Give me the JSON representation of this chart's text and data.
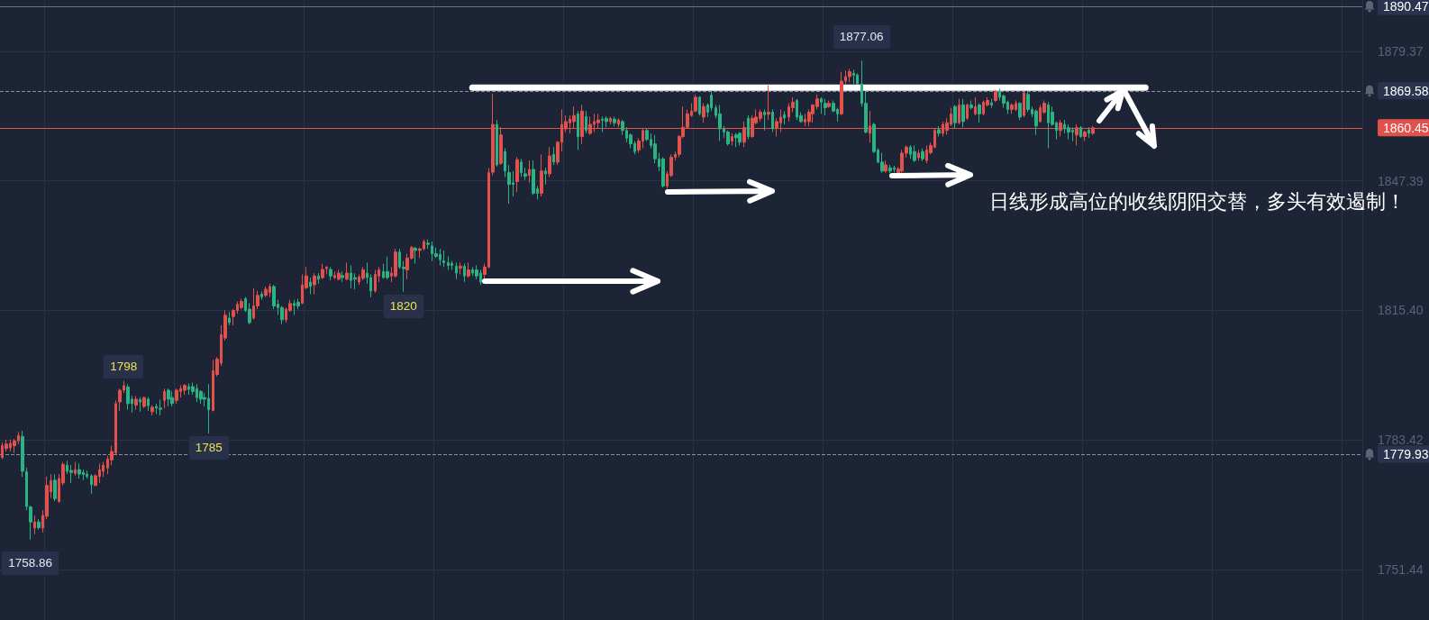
{
  "chart_data": {
    "type": "candlestick",
    "categories": [
      null,
      null,
      null,
      null,
      null,
      null,
      null,
      null,
      null,
      null,
      null,
      null,
      null,
      null,
      null,
      null,
      null,
      null,
      null,
      null,
      null,
      null,
      null,
      null,
      null,
      null,
      null,
      null,
      null,
      null,
      null,
      null,
      null,
      null,
      null,
      null,
      null,
      null,
      null,
      null,
      null,
      null,
      null,
      null,
      null,
      null,
      null,
      null,
      null,
      null,
      null,
      null,
      null,
      null,
      null,
      null,
      null,
      null,
      null,
      null,
      null,
      null,
      null,
      null,
      null,
      null,
      null,
      null,
      null,
      null,
      null,
      null,
      null,
      null,
      null,
      null,
      null,
      null,
      null,
      null,
      null,
      null,
      null,
      null,
      null,
      null,
      null,
      null,
      null,
      null,
      null,
      null,
      null,
      null,
      null,
      null,
      null,
      null,
      null,
      null,
      null,
      null,
      null,
      null,
      null,
      null,
      null,
      null,
      null,
      null,
      null,
      null,
      null,
      null,
      null,
      null,
      null,
      null,
      null,
      null,
      null,
      null,
      null,
      null,
      null,
      null,
      null,
      null,
      null,
      null,
      null,
      null,
      null,
      null,
      null,
      null,
      null,
      null,
      null,
      null,
      null,
      null,
      null,
      null,
      null,
      null,
      null,
      null,
      null,
      null,
      null,
      null,
      null,
      null,
      null,
      null,
      null,
      null,
      null,
      null,
      null,
      null,
      null,
      null,
      null,
      null,
      null,
      null,
      null,
      null,
      null,
      null,
      null,
      null,
      null,
      null,
      null,
      null,
      null,
      null,
      null,
      null,
      null,
      null,
      null,
      null,
      null,
      null,
      null,
      null,
      null,
      null,
      null,
      null,
      null,
      null,
      null,
      null,
      null,
      null,
      null,
      null,
      null,
      null,
      null,
      null,
      null,
      null,
      null,
      null,
      null,
      null,
      null,
      null,
      null,
      null,
      null,
      null,
      null,
      null,
      null,
      null,
      null,
      null,
      null,
      null,
      null,
      null,
      null,
      null,
      null,
      null,
      null,
      null,
      null,
      null,
      null,
      null,
      null,
      null,
      null,
      null,
      null,
      null,
      null,
      null,
      null,
      null,
      null,
      null,
      null,
      null,
      null,
      null,
      null,
      null,
      null,
      null,
      null,
      null,
      null,
      null,
      null,
      null,
      null,
      null,
      null,
      null,
      null,
      null,
      null,
      null,
      null,
      null,
      null,
      null,
      null,
      null,
      null,
      null,
      null,
      null,
      null,
      null,
      null,
      null,
      null,
      null,
      null,
      null,
      null,
      null,
      null,
      null,
      null,
      null,
      null,
      null,
      null,
      null,
      null,
      null,
      null,
      null,
      null,
      null,
      null,
      null,
      null,
      null,
      null,
      null,
      null,
      null,
      null,
      null,
      null,
      null,
      null,
      null,
      null,
      null,
      null,
      null,
      null,
      null,
      null,
      null,
      null,
      null,
      null,
      null,
      null,
      null,
      null,
      null
    ],
    "ohlc": [
      [
        1779.1,
        1782.8,
        1778.7,
        1782.0
      ],
      [
        1781.3,
        1783.5,
        1780.6,
        1782.4
      ],
      [
        1781.5,
        1783.5,
        1780.6,
        1782.6
      ],
      [
        1782.0,
        1783.7,
        1780.2,
        1783.2
      ],
      [
        1783.2,
        1785.4,
        1782.4,
        1784.5
      ],
      [
        1784.3,
        1785.7,
        1774.3,
        1775.7
      ],
      [
        1775.6,
        1776.6,
        1766.1,
        1767.0
      ],
      [
        1766.9,
        1767.2,
        1758.86,
        1763.2
      ],
      [
        1761.7,
        1764.8,
        1760.2,
        1763.2
      ],
      [
        1763.2,
        1763.9,
        1761.3,
        1761.8
      ],
      [
        1761.7,
        1766.1,
        1760.6,
        1764.8
      ],
      [
        1764.6,
        1774.4,
        1763.9,
        1772.2
      ],
      [
        1770.6,
        1775.0,
        1769.1,
        1773.4
      ],
      [
        1773.5,
        1775.0,
        1768.3,
        1768.9
      ],
      [
        1768.2,
        1775.0,
        1768.0,
        1773.9
      ],
      [
        1772.8,
        1778.0,
        1772.2,
        1777.4
      ],
      [
        1777.2,
        1778.3,
        1775.0,
        1775.7
      ],
      [
        1775.9,
        1777.2,
        1772.8,
        1775.4
      ],
      [
        1775.2,
        1778.0,
        1774.6,
        1776.1
      ],
      [
        1776.1,
        1777.6,
        1773.9,
        1775.0
      ],
      [
        1775.4,
        1776.1,
        1773.5,
        1774.9
      ],
      [
        1775.0,
        1775.9,
        1773.9,
        1774.4
      ],
      [
        1774.6,
        1775.0,
        1770.2,
        1772.4
      ],
      [
        1772.2,
        1775.0,
        1772.0,
        1774.6
      ],
      [
        1774.4,
        1777.6,
        1772.8,
        1776.1
      ],
      [
        1775.7,
        1778.0,
        1774.3,
        1777.2
      ],
      [
        1776.5,
        1779.5,
        1775.0,
        1778.7
      ],
      [
        1778.5,
        1782.0,
        1777.2,
        1780.6
      ],
      [
        1780.2,
        1793.2,
        1779.8,
        1792.4
      ],
      [
        1792.8,
        1796.1,
        1790.6,
        1795.7
      ],
      [
        1795.7,
        1798,
        1795.0,
        1796.8
      ],
      [
        1796.5,
        1797.2,
        1790.9,
        1792.4
      ],
      [
        1793.5,
        1794.3,
        1790.2,
        1792.4
      ],
      [
        1792.0,
        1794.3,
        1790.9,
        1793.5
      ],
      [
        1793.4,
        1794.0,
        1790.4,
        1792.8
      ],
      [
        1791.7,
        1794.1,
        1791.3,
        1793.9
      ],
      [
        1793.5,
        1794.0,
        1790.6,
        1791.9
      ],
      [
        1790.4,
        1792.0,
        1789.5,
        1791.5
      ],
      [
        1791.7,
        1792.4,
        1789.8,
        1791.3
      ],
      [
        1791.3,
        1793.4,
        1789.5,
        1791.0
      ],
      [
        1793.2,
        1796.1,
        1791.3,
        1795.4
      ],
      [
        1795.7,
        1796.1,
        1791.7,
        1793.5
      ],
      [
        1793.9,
        1795.4,
        1791.7,
        1792.4
      ],
      [
        1793.2,
        1796.1,
        1792.4,
        1795.7
      ],
      [
        1795.4,
        1796.9,
        1793.9,
        1796.1
      ],
      [
        1795.7,
        1797.2,
        1794.6,
        1796.9
      ],
      [
        1796.6,
        1797.4,
        1794.6,
        1795.9
      ],
      [
        1796.6,
        1797.6,
        1794.6,
        1795.4
      ],
      [
        1796.1,
        1797.2,
        1792.8,
        1793.9
      ],
      [
        1795.4,
        1795.7,
        1792.4,
        1793.5
      ],
      [
        1793.9,
        1795.0,
        1791.7,
        1793.5
      ],
      [
        1793.7,
        1797.2,
        1785,
        1790.9
      ],
      [
        1790.7,
        1803.2,
        1790.5,
        1800.5
      ],
      [
        1799.6,
        1803.9,
        1799.1,
        1803.4
      ],
      [
        1802.4,
        1811.7,
        1801.7,
        1809.4
      ],
      [
        1808.6,
        1815.4,
        1808.0,
        1814.2
      ],
      [
        1813.5,
        1815.0,
        1811.7,
        1812.4
      ],
      [
        1813.9,
        1815.7,
        1811.7,
        1815.4
      ],
      [
        1815.4,
        1817.6,
        1814.6,
        1816.9
      ],
      [
        1816.1,
        1818.3,
        1815.7,
        1817.6
      ],
      [
        1818.3,
        1818.7,
        1815.0,
        1815.4
      ],
      [
        1815.7,
        1817.2,
        1812.0,
        1812.4
      ],
      [
        1813.5,
        1820.9,
        1813.1,
        1816.5
      ],
      [
        1816.5,
        1820.2,
        1815.7,
        1819.1
      ],
      [
        1819.4,
        1820.1,
        1818.0,
        1818.7
      ],
      [
        1819.1,
        1821.3,
        1818.7,
        1820.6
      ],
      [
        1819.8,
        1822.0,
        1818.7,
        1821.3
      ],
      [
        1821.3,
        1821.7,
        1815.7,
        1816.5
      ],
      [
        1816.9,
        1818.0,
        1814.3,
        1816.1
      ],
      [
        1816.1,
        1816.5,
        1812.0,
        1813.1
      ],
      [
        1813.1,
        1816.1,
        1812.4,
        1815.7
      ],
      [
        1815.4,
        1818.0,
        1815.0,
        1817.1
      ],
      [
        1817.1,
        1818.0,
        1814.3,
        1816.6
      ],
      [
        1817.4,
        1818.3,
        1815.7,
        1816.5
      ],
      [
        1817.2,
        1824.3,
        1816.9,
        1821.7
      ],
      [
        1821.0,
        1826.1,
        1820.6,
        1823.9
      ],
      [
        1822.4,
        1823.5,
        1819.4,
        1821.3
      ],
      [
        1821.7,
        1824.6,
        1819.4,
        1823.9
      ],
      [
        1823.9,
        1824.6,
        1822.0,
        1823.1
      ],
      [
        1823.5,
        1826.9,
        1823.1,
        1825.5
      ],
      [
        1825.7,
        1826.3,
        1824.3,
        1826.1
      ],
      [
        1825.5,
        1826.1,
        1822.8,
        1823.9
      ],
      [
        1823.5,
        1825.0,
        1823.1,
        1824.0
      ],
      [
        1823.1,
        1825.4,
        1822.8,
        1824.6
      ],
      [
        1824.0,
        1825.0,
        1822.4,
        1823.5
      ],
      [
        1823.1,
        1827.2,
        1822.8,
        1824.6
      ],
      [
        1824.6,
        1826.5,
        1820.9,
        1822.8
      ],
      [
        1823.5,
        1824.6,
        1820.6,
        1823.1
      ],
      [
        1822.4,
        1824.3,
        1821.7,
        1823.7
      ],
      [
        1823.3,
        1826.1,
        1822.8,
        1825.4
      ],
      [
        1824.6,
        1827.2,
        1822.0,
        1823.5
      ],
      [
        1823.5,
        1824.3,
        1818.7,
        1820.2
      ],
      [
        1820.2,
        1825.4,
        1819.8,
        1824.3
      ],
      [
        1823.9,
        1826.1,
        1822.4,
        1825.4
      ],
      [
        1825.0,
        1826.9,
        1823.2,
        1823.5
      ],
      [
        1825.0,
        1828.7,
        1823.1,
        1823.5
      ],
      [
        1823.9,
        1826.1,
        1822.4,
        1824.6
      ],
      [
        1823.9,
        1830.6,
        1823.5,
        1829.8
      ],
      [
        1829.8,
        1830.6,
        1825.7,
        1826.1
      ],
      [
        1826.1,
        1827.6,
        1820,
        1825.7
      ],
      [
        1825.4,
        1829.4,
        1823.1,
        1828.3
      ],
      [
        1828.3,
        1831.3,
        1828.0,
        1830.9
      ],
      [
        1830.7,
        1831.1,
        1826.9,
        1830.2
      ],
      [
        1830.2,
        1830.9,
        1828.3,
        1830.6
      ],
      [
        1830.6,
        1832.9,
        1830.2,
        1832.4
      ],
      [
        1832.0,
        1832.9,
        1830.6,
        1831.7
      ],
      [
        1831.3,
        1832.4,
        1827.6,
        1829.4
      ],
      [
        1829.4,
        1830.9,
        1828.3,
        1828.7
      ],
      [
        1829.2,
        1830.6,
        1826.5,
        1827.9
      ],
      [
        1827.6,
        1830.2,
        1826.1,
        1827.2
      ],
      [
        1827.2,
        1828.7,
        1825.4,
        1826.5
      ],
      [
        1827.0,
        1827.6,
        1825.4,
        1826.5
      ],
      [
        1826.3,
        1827.2,
        1823.1,
        1824.6
      ],
      [
        1825.8,
        1827.2,
        1824.3,
        1826.3
      ],
      [
        1826.3,
        1826.9,
        1822.4,
        1823.9
      ],
      [
        1823.9,
        1827.2,
        1823.5,
        1825.4
      ],
      [
        1825.4,
        1826.1,
        1823.9,
        1824.6
      ],
      [
        1825.4,
        1826.5,
        1823.1,
        1823.9
      ],
      [
        1824.6,
        1825.4,
        1821.7,
        1822.4
      ],
      [
        1824.3,
        1826.9,
        1822.8,
        1826.1
      ],
      [
        1826.1,
        1850.5,
        1825.8,
        1849.4
      ],
      [
        1849.5,
        1868.8,
        1848.7,
        1861.3
      ],
      [
        1861.3,
        1862.4,
        1850.9,
        1851.3
      ],
      [
        1851.7,
        1860.6,
        1851.3,
        1858.7
      ],
      [
        1854.6,
        1855.4,
        1848.3,
        1849.8
      ],
      [
        1849.4,
        1851.3,
        1841.7,
        1846.5
      ],
      [
        1846.9,
        1849.8,
        1843.5,
        1846.5
      ],
      [
        1847.2,
        1853.2,
        1844.6,
        1852.6
      ],
      [
        1852.0,
        1852.8,
        1848.3,
        1849.4
      ],
      [
        1849.1,
        1850.6,
        1847.6,
        1848.5
      ],
      [
        1848.7,
        1852.4,
        1846.9,
        1850.2
      ],
      [
        1850.2,
        1852.4,
        1843.9,
        1844.3
      ],
      [
        1845.4,
        1846.1,
        1842.8,
        1844.3
      ],
      [
        1844.3,
        1853.9,
        1843.5,
        1849.8
      ],
      [
        1849.8,
        1850.6,
        1846.5,
        1849.1
      ],
      [
        1849.1,
        1855.7,
        1848.3,
        1853.5
      ],
      [
        1853.9,
        1855.7,
        1851.3,
        1852.0
      ],
      [
        1852.0,
        1857.2,
        1851.3,
        1856.9
      ],
      [
        1856.9,
        1865.0,
        1854.6,
        1861.3
      ],
      [
        1860.2,
        1863.5,
        1859.4,
        1862.0
      ],
      [
        1861.7,
        1863.5,
        1859.1,
        1862.6
      ],
      [
        1862.0,
        1865.7,
        1860.2,
        1863.5
      ],
      [
        1863.9,
        1864.6,
        1855.0,
        1858.3
      ],
      [
        1858.3,
        1866.1,
        1856.5,
        1864.6
      ],
      [
        1863.2,
        1864.6,
        1859.1,
        1859.8
      ],
      [
        1859.1,
        1863.2,
        1858.7,
        1861.3
      ],
      [
        1861.3,
        1863.9,
        1859.4,
        1862.0
      ],
      [
        1861.7,
        1863.9,
        1860.2,
        1862.4
      ],
      [
        1862.6,
        1863.2,
        1859.4,
        1862.3
      ],
      [
        1862.8,
        1863.3,
        1860.6,
        1862.0
      ],
      [
        1862.0,
        1863.2,
        1861.3,
        1862.8
      ],
      [
        1862.6,
        1863.2,
        1860.9,
        1861.7
      ],
      [
        1861.3,
        1862.8,
        1860.6,
        1862.4
      ],
      [
        1862.0,
        1862.4,
        1858.7,
        1859.8
      ],
      [
        1859.8,
        1860.6,
        1856.9,
        1857.9
      ],
      [
        1858.7,
        1859.1,
        1855.4,
        1856.5
      ],
      [
        1856.6,
        1857.2,
        1853.9,
        1854.6
      ],
      [
        1855.0,
        1857.9,
        1854.3,
        1857.2
      ],
      [
        1857.2,
        1860.2,
        1855.4,
        1859.8
      ],
      [
        1859.8,
        1860.2,
        1857.2,
        1857.6
      ],
      [
        1857.6,
        1859.1,
        1855.4,
        1856.1
      ],
      [
        1856.5,
        1858.7,
        1851.7,
        1852.8
      ],
      [
        1852.8,
        1854.3,
        1849.8,
        1850.9
      ],
      [
        1852.8,
        1853.2,
        1845.7,
        1846.1
      ],
      [
        1846.1,
        1849.8,
        1845.4,
        1849.1
      ],
      [
        1848.7,
        1853.9,
        1848.3,
        1853.2
      ],
      [
        1853.2,
        1854.6,
        1852.4,
        1853.9
      ],
      [
        1853.9,
        1858.7,
        1853.2,
        1858.3
      ],
      [
        1858.3,
        1865.7,
        1857.9,
        1860.6
      ],
      [
        1860.6,
        1865.0,
        1860.2,
        1863.9
      ],
      [
        1863.5,
        1866.5,
        1863.2,
        1864.6
      ],
      [
        1864.6,
        1868.7,
        1864.3,
        1868.0
      ],
      [
        1868.0,
        1868.3,
        1863.5,
        1863.9
      ],
      [
        1863.1,
        1866.5,
        1861.7,
        1865.7
      ],
      [
        1866.1,
        1866.5,
        1863.1,
        1864.3
      ],
      [
        1868.5,
        1869.3,
        1864.6,
        1865.4
      ],
      [
        1865.4,
        1866.1,
        1862.8,
        1863.5
      ],
      [
        1863.9,
        1866.1,
        1857.2,
        1860.2
      ],
      [
        1860.2,
        1860.9,
        1858.0,
        1859.4
      ],
      [
        1859.4,
        1859.8,
        1856.1,
        1856.5
      ],
      [
        1857.2,
        1859.1,
        1856.1,
        1858.3
      ],
      [
        1858.7,
        1859.2,
        1855.7,
        1858.0
      ],
      [
        1859.1,
        1859.4,
        1856.1,
        1856.9
      ],
      [
        1856.9,
        1862.0,
        1855.7,
        1860.5
      ],
      [
        1862.8,
        1863.5,
        1857.6,
        1858.3
      ],
      [
        1858.3,
        1863.5,
        1858.0,
        1862.8
      ],
      [
        1861.7,
        1865.0,
        1861.3,
        1863.1
      ],
      [
        1862.8,
        1865.0,
        1862.0,
        1864.3
      ],
      [
        1864.3,
        1865.0,
        1859.8,
        1863.7
      ],
      [
        1863.8,
        1870.9,
        1862.4,
        1864.3
      ],
      [
        1864.3,
        1865.0,
        1859.4,
        1860.2
      ],
      [
        1860.5,
        1862.8,
        1858.3,
        1862.0
      ],
      [
        1861.7,
        1865.0,
        1859.4,
        1863.1
      ],
      [
        1863.7,
        1864.6,
        1861.3,
        1862.9
      ],
      [
        1863.1,
        1866.5,
        1862.0,
        1865.7
      ],
      [
        1865.4,
        1868.0,
        1864.3,
        1866.8
      ],
      [
        1867.2,
        1867.6,
        1862.4,
        1863.1
      ],
      [
        1863.5,
        1864.3,
        1861.7,
        1862.0
      ],
      [
        1861.9,
        1863.9,
        1860.9,
        1862.6
      ],
      [
        1862.0,
        1865.0,
        1860.9,
        1864.3
      ],
      [
        1863.9,
        1866.3,
        1861.7,
        1866.1
      ],
      [
        1865.7,
        1868.7,
        1865.0,
        1867.6
      ],
      [
        1867.6,
        1868.0,
        1863.9,
        1866.8
      ],
      [
        1866.5,
        1867.6,
        1863.5,
        1865.4
      ],
      [
        1865.7,
        1867.2,
        1865.4,
        1866.5
      ],
      [
        1866.5,
        1867.2,
        1864.3,
        1864.6
      ],
      [
        1865.0,
        1865.4,
        1862.0,
        1863.9
      ],
      [
        1863.9,
        1874.3,
        1863.6,
        1872.0
      ],
      [
        1872.0,
        1874.6,
        1871.3,
        1873.1
      ],
      [
        1873.1,
        1875.0,
        1871.7,
        1874.3
      ],
      [
        1873.9,
        1874.8,
        1871.3,
        1873.4
      ],
      [
        1873.5,
        1873.9,
        1871.1,
        1871.3
      ],
      [
        1871.3,
        1877.06,
        1865.7,
        1866.5
      ],
      [
        1866.5,
        1869.4,
        1859.1,
        1859.4
      ],
      [
        1859.1,
        1864.6,
        1856.8,
        1860.9
      ],
      [
        1861.3,
        1861.7,
        1854.2,
        1854.6
      ],
      [
        1855.0,
        1855.4,
        1851.7,
        1852.0
      ],
      [
        1852.0,
        1854.3,
        1849.4,
        1849.8
      ],
      [
        1849.8,
        1852.4,
        1849.4,
        1851.3
      ],
      [
        1850.6,
        1851.3,
        1849.3,
        1849.8
      ],
      [
        1850.6,
        1851.1,
        1849.4,
        1850.2
      ],
      [
        1849.4,
        1850.8,
        1849.3,
        1850.3
      ],
      [
        1849.8,
        1855.0,
        1849.4,
        1854.2
      ],
      [
        1854.2,
        1856.1,
        1853.1,
        1855.7
      ],
      [
        1855.7,
        1856.2,
        1852.8,
        1853.9
      ],
      [
        1854.6,
        1856.1,
        1852.0,
        1852.4
      ],
      [
        1853.1,
        1855.0,
        1852.4,
        1854.2
      ],
      [
        1854.6,
        1855.4,
        1852.2,
        1852.8
      ],
      [
        1852.4,
        1856.1,
        1851.7,
        1855.0
      ],
      [
        1854.3,
        1856.8,
        1853.9,
        1856.1
      ],
      [
        1855.7,
        1860.2,
        1855.4,
        1859.8
      ],
      [
        1860.0,
        1860.9,
        1858.3,
        1859.1
      ],
      [
        1859.1,
        1862.0,
        1858.3,
        1861.3
      ],
      [
        1859.8,
        1862.8,
        1858.7,
        1861.7
      ],
      [
        1861.3,
        1865.4,
        1860.9,
        1863.9
      ],
      [
        1865.7,
        1866.1,
        1860.2,
        1861.7
      ],
      [
        1861.7,
        1867.6,
        1861.3,
        1866.1
      ],
      [
        1866.1,
        1867.6,
        1860.6,
        1862.0
      ],
      [
        1862.8,
        1866.5,
        1862.4,
        1866.1
      ],
      [
        1866.1,
        1867.2,
        1865.0,
        1865.4
      ],
      [
        1863.9,
        1868.0,
        1863.5,
        1865.7
      ],
      [
        1866.1,
        1866.5,
        1861.7,
        1863.9
      ],
      [
        1863.9,
        1867.2,
        1863.5,
        1866.8
      ],
      [
        1866.1,
        1868.0,
        1865.7,
        1867.2
      ],
      [
        1866.6,
        1867.6,
        1865.4,
        1866.1
      ],
      [
        1867.2,
        1869.8,
        1866.8,
        1869.4
      ],
      [
        1869.4,
        1870.2,
        1867.2,
        1868.0
      ],
      [
        1868.3,
        1868.7,
        1865.4,
        1866.5
      ],
      [
        1866.8,
        1867.2,
        1863.9,
        1865.0
      ],
      [
        1865.0,
        1866.5,
        1863.9,
        1866.1
      ],
      [
        1865.0,
        1867.2,
        1864.6,
        1866.5
      ],
      [
        1866.5,
        1866.8,
        1862.4,
        1863.1
      ],
      [
        1863.5,
        1869.4,
        1863.1,
        1869.1
      ],
      [
        1868.7,
        1869.4,
        1864.3,
        1865.0
      ],
      [
        1865.0,
        1865.7,
        1863.1,
        1863.9
      ],
      [
        1864.6,
        1865.0,
        1858.7,
        1860.9
      ],
      [
        1862.0,
        1866.1,
        1861.7,
        1865.4
      ],
      [
        1864.3,
        1867.2,
        1863.9,
        1866.5
      ],
      [
        1866.1,
        1866.8,
        1855.4,
        1861.7
      ],
      [
        1864.3,
        1865.7,
        1860.9,
        1861.3
      ],
      [
        1861.7,
        1862.0,
        1857.6,
        1859.8
      ],
      [
        1859.8,
        1862.4,
        1858.3,
        1861.7
      ],
      [
        1861.3,
        1862.4,
        1859.1,
        1860.2
      ],
      [
        1860.5,
        1861.3,
        1857.6,
        1859.4
      ],
      [
        1859.9,
        1860.6,
        1857.2,
        1859.4
      ],
      [
        1858.7,
        1861.3,
        1856.1,
        1860.5
      ],
      [
        1860.5,
        1860.9,
        1858.0,
        1858.3
      ],
      [
        1858.3,
        1859.8,
        1857.2,
        1859.4
      ],
      [
        1859.9,
        1860.6,
        1858.0,
        1859.1
      ],
      [
        1859.1,
        1860.9,
        1858.7,
        1860.45
      ],
      null,
      null,
      null,
      null,
      null,
      null,
      null,
      null,
      null,
      null,
      null,
      null,
      null,
      null,
      null,
      null,
      null,
      null,
      null,
      null,
      null,
      null,
      null,
      null,
      null,
      null,
      null,
      null,
      null,
      null,
      null,
      null,
      null,
      null,
      null,
      null,
      null,
      null,
      null,
      null,
      null,
      null,
      null,
      null,
      null,
      null,
      null,
      null,
      null,
      null,
      null,
      null,
      null,
      null,
      null,
      null,
      null,
      null,
      null,
      null,
      null,
      null,
      null,
      null,
      null,
      null
    ],
    "colors": [
      "#e2514c",
      "#e2514c",
      "#e2514c",
      "#e2514c",
      "#e2514c",
      "#2ab383",
      "#2ab383",
      "#2ab383",
      "#e2514c",
      "#2ab383",
      "#e2514c",
      "#e2514c",
      "#e2514c",
      "#2ab383",
      "#e2514c",
      "#e2514c",
      "#2ab383",
      "#2ab383",
      "#e2514c",
      "#2ab383",
      "#2ab383",
      "#2ab383",
      "#2ab383",
      "#e2514c",
      "#e2514c",
      "#e2514c",
      "#e2514c",
      "#e2514c",
      "#e2514c",
      "#e2514c",
      "#e2514c",
      "#2ab383",
      "#2ab383",
      "#e2514c",
      "#2ab383",
      "#e2514c",
      "#2ab383",
      "#e2514c",
      "#2ab383",
      "#2ab383",
      "#e2514c",
      "#2ab383",
      "#2ab383",
      "#e2514c",
      "#e2514c",
      "#e2514c",
      "#2ab383",
      "#2ab383",
      "#2ab383",
      "#2ab383",
      "#2ab383",
      "#2ab383",
      "#e2514c",
      "#e2514c",
      "#e2514c",
      "#e2514c",
      "#2ab383",
      "#e2514c",
      "#e2514c",
      "#e2514c",
      "#2ab383",
      "#2ab383",
      "#e2514c",
      "#e2514c",
      "#2ab383",
      "#e2514c",
      "#e2514c",
      "#2ab383",
      "#2ab383",
      "#2ab383",
      "#e2514c",
      "#e2514c",
      "#2ab383",
      "#2ab383",
      "#e2514c",
      "#e2514c",
      "#2ab383",
      "#e2514c",
      "#2ab383",
      "#e2514c",
      "#e2514c",
      "#2ab383",
      "#e2514c",
      "#e2514c",
      "#2ab383",
      "#e2514c",
      "#2ab383",
      "#2ab383",
      "#e2514c",
      "#e2514c",
      "#2ab383",
      "#2ab383",
      "#e2514c",
      "#e2514c",
      "#2ab383",
      "#2ab383",
      "#e2514c",
      "#e2514c",
      "#2ab383",
      "#2ab383",
      "#e2514c",
      "#e2514c",
      "#2ab383",
      "#e2514c",
      "#e2514c",
      "#2ab383",
      "#2ab383",
      "#2ab383",
      "#2ab383",
      "#2ab383",
      "#2ab383",
      "#2ab383",
      "#2ab383",
      "#e2514c",
      "#2ab383",
      "#e2514c",
      "#2ab383",
      "#2ab383",
      "#2ab383",
      "#e2514c",
      "#e2514c",
      "#e2514c",
      "#2ab383",
      "#e2514c",
      "#2ab383",
      "#2ab383",
      "#2ab383",
      "#e2514c",
      "#2ab383",
      "#2ab383",
      "#e2514c",
      "#2ab383",
      "#2ab383",
      "#e2514c",
      "#2ab383",
      "#e2514c",
      "#2ab383",
      "#e2514c",
      "#e2514c",
      "#e2514c",
      "#e2514c",
      "#e2514c",
      "#2ab383",
      "#e2514c",
      "#2ab383",
      "#e2514c",
      "#e2514c",
      "#e2514c",
      "#2ab383",
      "#2ab383",
      "#e2514c",
      "#2ab383",
      "#e2514c",
      "#2ab383",
      "#2ab383",
      "#2ab383",
      "#2ab383",
      "#e2514c",
      "#e2514c",
      "#2ab383",
      "#2ab383",
      "#2ab383",
      "#2ab383",
      "#2ab383",
      "#e2514c",
      "#e2514c",
      "#e2514c",
      "#e2514c",
      "#e2514c",
      "#e2514c",
      "#e2514c",
      "#e2514c",
      "#2ab383",
      "#e2514c",
      "#2ab383",
      "#2ab383",
      "#2ab383",
      "#2ab383",
      "#2ab383",
      "#2ab383",
      "#e2514c",
      "#2ab383",
      "#2ab383",
      "#e2514c",
      "#2ab383",
      "#e2514c",
      "#e2514c",
      "#e2514c",
      "#2ab383",
      "#e2514c",
      "#2ab383",
      "#e2514c",
      "#e2514c",
      "#2ab383",
      "#e2514c",
      "#e2514c",
      "#2ab383",
      "#2ab383",
      "#e2514c",
      "#e2514c",
      "#e2514c",
      "#e2514c",
      "#2ab383",
      "#2ab383",
      "#e2514c",
      "#2ab383",
      "#2ab383",
      "#e2514c",
      "#e2514c",
      "#e2514c",
      "#2ab383",
      "#2ab383",
      "#2ab383",
      "#2ab383",
      "#e2514c",
      "#2ab383",
      "#2ab383",
      "#2ab383",
      "#e2514c",
      "#2ab383",
      "#2ab383",
      "#e2514c",
      "#e2514c",
      "#e2514c",
      "#2ab383",
      "#2ab383",
      "#e2514c",
      "#2ab383",
      "#e2514c",
      "#e2514c",
      "#e2514c",
      "#2ab383",
      "#e2514c",
      "#e2514c",
      "#e2514c",
      "#2ab383",
      "#e2514c",
      "#2ab383",
      "#e2514c",
      "#2ab383",
      "#e2514c",
      "#2ab383",
      "#e2514c",
      "#e2514c",
      "#2ab383",
      "#e2514c",
      "#2ab383",
      "#2ab383",
      "#2ab383",
      "#e2514c",
      "#e2514c",
      "#2ab383",
      "#e2514c",
      "#2ab383",
      "#2ab383",
      "#2ab383",
      "#e2514c",
      "#e2514c",
      "#2ab383",
      "#2ab383",
      "#2ab383",
      "#e2514c",
      "#2ab383",
      "#2ab383",
      "#2ab383",
      "#e2514c",
      "#2ab383",
      "#e2514c",
      "#2ab383",
      "#e2514c",
      null,
      null,
      null,
      null,
      null,
      null,
      null,
      null,
      null,
      null,
      null,
      null,
      null,
      null,
      null,
      null,
      null,
      null,
      null,
      null,
      null,
      null,
      null,
      null,
      null,
      null,
      null,
      null,
      null,
      null,
      null,
      null,
      null,
      null,
      null,
      null,
      null,
      null,
      null,
      null,
      null,
      null,
      null,
      null,
      null,
      null,
      null,
      null,
      null,
      null,
      null,
      null,
      null,
      null,
      null,
      null,
      null,
      null,
      null,
      null,
      null,
      null,
      null,
      null,
      null,
      null
    ],
    "series": [
      {
        "type": "line",
        "color": "#ffffff",
        "values": [
          null,
          null,
          null,
          null,
          null,
          null,
          null,
          null,
          null,
          null,
          null,
          null,
          null,
          null,
          null,
          null,
          null,
          null,
          null,
          null,
          null,
          null,
          null,
          null,
          null,
          null,
          null,
          null,
          null,
          null,
          null,
          null,
          null,
          null,
          null,
          null,
          null,
          null,
          null,
          null,
          null,
          null,
          null,
          null,
          null,
          null,
          null,
          null,
          null,
          null,
          null,
          null,
          null,
          null,
          null,
          null,
          null,
          null,
          null,
          null,
          null,
          null,
          null,
          null,
          null,
          null,
          null,
          null,
          null,
          null,
          null,
          null,
          null,
          null,
          null,
          null,
          null,
          null,
          null,
          null,
          null,
          null,
          null,
          null,
          null,
          null,
          null,
          null,
          null,
          null,
          null,
          null,
          null,
          null,
          null,
          null,
          null,
          null,
          null,
          null,
          null,
          null,
          null,
          null,
          null,
          null,
          null,
          null,
          null,
          null,
          null,
          null,
          null,
          null,
          null,
          null,
          1870.4,
          1870.4,
          1870.4,
          1870.4,
          1870.4,
          1870.4,
          1870.4,
          1870.4,
          1870.4,
          1870.4,
          1870.4,
          1870.4,
          1870.4,
          1870.4,
          1870.4,
          1870.4,
          1870.4,
          1870.4,
          1870.4,
          1870.4,
          1870.4,
          1870.4,
          1870.4,
          1870.4,
          1870.4,
          1870.4,
          1870.4,
          1870.4,
          1870.4,
          1870.4,
          1870.4,
          1870.4,
          1870.4,
          1870.4,
          1870.4,
          1870.4,
          1870.4,
          1870.4,
          1870.4,
          1870.4,
          1870.4,
          1870.4,
          1870.4,
          1870.4,
          1870.4,
          1870.4,
          1870.4,
          1870.4,
          1870.4,
          1870.4,
          1870.4,
          1870.4,
          1870.4,
          1870.4,
          1870.4,
          1870.4,
          1870.4,
          1870.4,
          1870.4,
          1870.4,
          1870.4,
          1870.4,
          1870.4,
          1870.4,
          1870.4,
          1870.4,
          1870.4,
          1870.4,
          1870.4,
          1870.4,
          1870.4,
          1870.4,
          1870.4,
          1870.4,
          1870.4,
          1870.4,
          1870.4,
          1870.4,
          1870.4,
          1870.4,
          1870.4,
          1870.4,
          1870.4,
          1870.4,
          1870.4,
          1870.4,
          1870.4,
          1870.4,
          1870.4,
          1870.4,
          1870.4,
          1870.4,
          1870.4,
          1870.4,
          1870.4,
          1870.4,
          1870.4,
          1870.4,
          1870.4,
          1870.4,
          1870.4,
          1870.4,
          1870.4,
          1870.4,
          1870.4,
          1870.4,
          1870.4,
          1870.4,
          1870.4,
          1870.4,
          1870.4,
          1870.4,
          1870.4,
          1870.4,
          1870.4,
          1870.4,
          1870.4,
          1870.4,
          1870.4,
          1870.4,
          1870.4,
          1870.4,
          1870.4,
          1870.4,
          1870.4,
          1870.4,
          1870.4,
          1870.4,
          1870.4,
          1870.4,
          1870.4,
          1870.4,
          1870.4,
          1870.4,
          1870.4,
          1870.4,
          1870.4,
          1870.4,
          1870.4,
          1870.4,
          1870.4,
          1870.4,
          1870.4,
          1870.4,
          1870.4,
          1870.4,
          1870.4,
          1870.4,
          1870.4,
          1870.4,
          1870.4,
          1870.4,
          1870.4,
          1870.4,
          1870.4,
          1870.4,
          1870.4,
          1870.4,
          1870.4,
          1870.4,
          1870.4,
          1870.4,
          1870.4,
          1870.4,
          1870.4,
          1870.4,
          1870.4,
          null,
          null,
          null,
          null,
          null,
          null,
          null,
          null,
          null,
          null,
          null,
          null,
          null,
          null,
          null,
          null,
          null,
          null,
          null,
          null,
          null,
          null,
          null,
          null,
          null,
          null,
          null,
          null,
          null,
          null,
          null,
          null,
          null,
          null,
          null,
          null,
          null,
          null,
          null,
          null,
          null,
          null,
          null,
          null,
          null,
          null,
          null,
          null,
          null,
          null,
          null,
          null,
          null
        ]
      }
    ],
    "ylim": [
      1739,
      1892
    ],
    "yticks": [
      1751.44,
      1783.42,
      {
        "value": 1815.4,
        "label": "1815.40"
      },
      1847.39,
      1879.37
    ],
    "ref_lines": [
      {
        "axis": "y",
        "value": 1890.47,
        "label": "1890.47",
        "color": "#69728a",
        "line_style": "solid"
      },
      {
        "axis": "y",
        "value": 1869.58,
        "label": "1869.58",
        "color": "#8a91a0",
        "line_style": "dashed"
      },
      {
        "axis": "y",
        "value": 1860.45,
        "label": "1860.45",
        "color": "#e2514c",
        "line_style": "solid"
      },
      {
        "axis": "y",
        "value": 1779.93,
        "label": "1779.93",
        "color": "#8a91a0",
        "line_style": "dashed"
      }
    ],
    "annotations": [
      {
        "text": "1758.86",
        "y": 1758.86
      },
      {
        "text": "1798",
        "y": 1798
      },
      {
        "text": "1785",
        "y": 1785
      },
      {
        "text": "1820",
        "y": 1820
      },
      {
        "text": "1877.06",
        "y": 1877.06
      },
      "日线形成高位的收线阴阳交替，多头有效遏制！"
    ],
    "grid": true,
    "tick_labels": "y"
  }
}
